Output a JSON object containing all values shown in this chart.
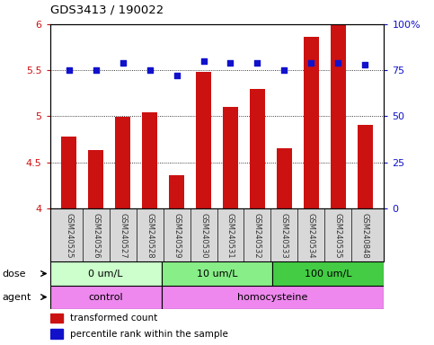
{
  "title": "GDS3413 / 190022",
  "samples": [
    "GSM240525",
    "GSM240526",
    "GSM240527",
    "GSM240528",
    "GSM240529",
    "GSM240530",
    "GSM240531",
    "GSM240532",
    "GSM240533",
    "GSM240534",
    "GSM240535",
    "GSM240848"
  ],
  "red_values": [
    4.78,
    4.63,
    4.99,
    5.04,
    4.36,
    5.48,
    5.1,
    5.3,
    4.65,
    5.86,
    5.99,
    4.91
  ],
  "blue_values": [
    75,
    75,
    79,
    75,
    72,
    80,
    79,
    79,
    75,
    79,
    79,
    78
  ],
  "ylim_left": [
    4.0,
    6.0
  ],
  "ylim_right": [
    0,
    100
  ],
  "yticks_left": [
    4.0,
    4.5,
    5.0,
    5.5,
    6.0
  ],
  "yticks_right": [
    0,
    25,
    50,
    75,
    100
  ],
  "ytick_labels_left": [
    "4",
    "4.5",
    "5",
    "5.5",
    "6"
  ],
  "ytick_labels_right": [
    "0",
    "25",
    "50",
    "75",
    "100%"
  ],
  "red_color": "#cc1111",
  "blue_color": "#1111cc",
  "bar_width": 0.55,
  "dose_groups": [
    {
      "label": "0 um/L",
      "start": 0,
      "end": 4,
      "color": "#ccffcc"
    },
    {
      "label": "10 um/L",
      "start": 4,
      "end": 8,
      "color": "#88ee88"
    },
    {
      "label": "100 um/L",
      "start": 8,
      "end": 12,
      "color": "#44cc44"
    }
  ],
  "agent_groups": [
    {
      "label": "control",
      "start": 0,
      "end": 4,
      "color": "#ee88ee"
    },
    {
      "label": "homocysteine",
      "start": 4,
      "end": 12,
      "color": "#ee88ee"
    }
  ],
  "legend_red": "transformed count",
  "legend_blue": "percentile rank within the sample",
  "dose_label": "dose",
  "agent_label": "agent",
  "sample_bg_color": "#d8d8d8",
  "plot_bg_color": "#ffffff",
  "grid_color": "black"
}
